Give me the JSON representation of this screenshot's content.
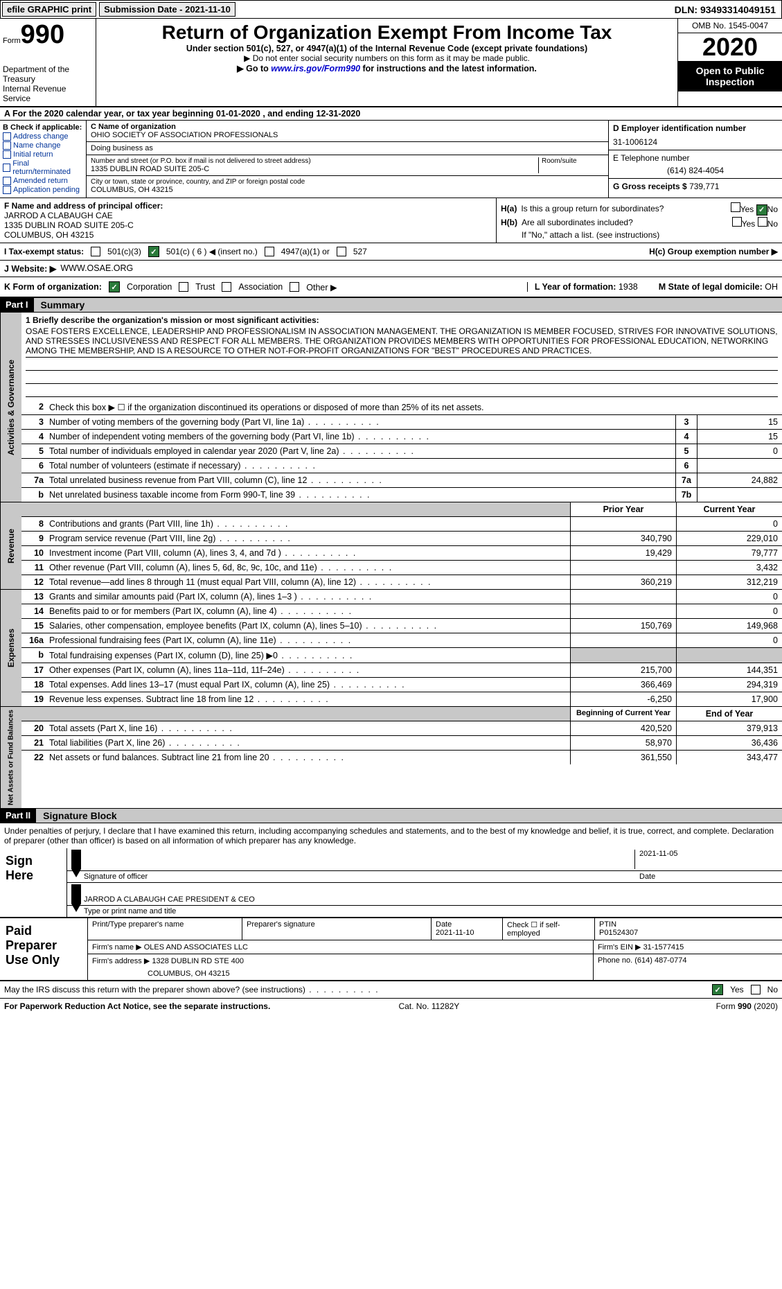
{
  "top": {
    "efile": "efile GRAPHIC print",
    "submission": "Submission Date - 2021-11-10",
    "dln": "DLN: 93493314049151"
  },
  "header": {
    "form_label": "Form",
    "form_num": "990",
    "dept": "Department of the Treasury\nInternal Revenue Service",
    "title": "Return of Organization Exempt From Income Tax",
    "sub": "Under section 501(c), 527, or 4947(a)(1) of the Internal Revenue Code (except private foundations)",
    "note1": "▶ Do not enter social security numbers on this form as it may be made public.",
    "note2": "▶ Go to www.irs.gov/Form990 for instructions and the latest information.",
    "omb": "OMB No. 1545-0047",
    "year": "2020",
    "open": "Open to Public Inspection"
  },
  "row_a": "A For the 2020 calendar year, or tax year beginning 01-01-2020  , and ending 12-31-2020",
  "b": {
    "label": "B Check if applicable:",
    "opts": [
      "Address change",
      "Name change",
      "Initial return",
      "Final return/terminated",
      "Amended return",
      "Application pending"
    ]
  },
  "c": {
    "label": "C Name of organization",
    "org": "OHIO SOCIETY OF ASSOCIATION PROFESSIONALS",
    "dba_label": "Doing business as",
    "dba": "",
    "addr_label": "Number and street (or P.O. box if mail is not delivered to street address)",
    "addr": "1335 DUBLIN ROAD SUITE 205-C",
    "room_label": "Room/suite",
    "city_label": "City or town, state or province, country, and ZIP or foreign postal code",
    "city": "COLUMBUS, OH  43215"
  },
  "d": {
    "label": "D Employer identification number",
    "val": "31-1006124"
  },
  "e": {
    "label": "E Telephone number",
    "val": "(614) 824-4054"
  },
  "g": {
    "label": "G Gross receipts $",
    "val": "739,771"
  },
  "f": {
    "label": "F  Name and address of principal officer:",
    "name": "JARROD A CLABAUGH CAE",
    "addr1": "1335 DUBLIN ROAD SUITE 205-C",
    "addr2": "COLUMBUS, OH  43215"
  },
  "h": {
    "a": "H(a)  Is this a group return for subordinates?",
    "b": "H(b)  Are all subordinates included?",
    "note": "If \"No,\" attach a list. (see instructions)",
    "c": "H(c)  Group exemption number ▶",
    "yes": "Yes",
    "no": "No"
  },
  "i": {
    "label": "I  Tax-exempt status:",
    "opts": [
      "501(c)(3)",
      "501(c) ( 6 ) ◀ (insert no.)",
      "4947(a)(1) or",
      "527"
    ]
  },
  "j": {
    "label": "J  Website: ▶",
    "val": "WWW.OSAE.ORG"
  },
  "k": {
    "label": "K Form of organization:",
    "opts": [
      "Corporation",
      "Trust",
      "Association",
      "Other ▶"
    ]
  },
  "l": {
    "label": "L Year of formation:",
    "val": "1938"
  },
  "m": {
    "label": "M State of legal domicile:",
    "val": "OH"
  },
  "part1": {
    "label": "Part I",
    "title": "Summary"
  },
  "mission": {
    "label": "1  Briefly describe the organization's mission or most significant activities:",
    "text": "OSAE FOSTERS EXCELLENCE, LEADERSHIP AND PROFESSIONALISM IN ASSOCIATION MANAGEMENT. THE ORGANIZATION IS MEMBER FOCUSED, STRIVES FOR INNOVATIVE SOLUTIONS, AND STRESSES INCLUSIVENESS AND RESPECT FOR ALL MEMBERS. THE ORGANIZATION PROVIDES MEMBERS WITH OPPORTUNITIES FOR PROFESSIONAL EDUCATION, NETWORKING AMONG THE MEMBERSHIP, AND IS A RESOURCE TO OTHER NOT-FOR-PROFIT ORGANIZATIONS FOR \"BEST\" PROCEDURES AND PRACTICES."
  },
  "gov": {
    "side": "Activities & Governance",
    "l2": "Check this box ▶ ☐  if the organization discontinued its operations or disposed of more than 25% of its net assets.",
    "rows": [
      {
        "n": "3",
        "t": "Number of voting members of the governing body (Part VI, line 1a)",
        "b": "3",
        "v": "15"
      },
      {
        "n": "4",
        "t": "Number of independent voting members of the governing body (Part VI, line 1b)",
        "b": "4",
        "v": "15"
      },
      {
        "n": "5",
        "t": "Total number of individuals employed in calendar year 2020 (Part V, line 2a)",
        "b": "5",
        "v": "0"
      },
      {
        "n": "6",
        "t": "Total number of volunteers (estimate if necessary)",
        "b": "6",
        "v": ""
      },
      {
        "n": "7a",
        "t": "Total unrelated business revenue from Part VIII, column (C), line 12",
        "b": "7a",
        "v": "24,882"
      },
      {
        "n": "b",
        "t": "Net unrelated business taxable income from Form 990-T, line 39",
        "b": "7b",
        "v": ""
      }
    ]
  },
  "rev": {
    "side": "Revenue",
    "hdr_py": "Prior Year",
    "hdr_cy": "Current Year",
    "rows": [
      {
        "n": "8",
        "t": "Contributions and grants (Part VIII, line 1h)",
        "py": "",
        "cy": "0"
      },
      {
        "n": "9",
        "t": "Program service revenue (Part VIII, line 2g)",
        "py": "340,790",
        "cy": "229,010"
      },
      {
        "n": "10",
        "t": "Investment income (Part VIII, column (A), lines 3, 4, and 7d )",
        "py": "19,429",
        "cy": "79,777"
      },
      {
        "n": "11",
        "t": "Other revenue (Part VIII, column (A), lines 5, 6d, 8c, 9c, 10c, and 11e)",
        "py": "",
        "cy": "3,432"
      },
      {
        "n": "12",
        "t": "Total revenue—add lines 8 through 11 (must equal Part VIII, column (A), line 12)",
        "py": "360,219",
        "cy": "312,219"
      }
    ]
  },
  "exp": {
    "side": "Expenses",
    "rows": [
      {
        "n": "13",
        "t": "Grants and similar amounts paid (Part IX, column (A), lines 1–3 )",
        "py": "",
        "cy": "0"
      },
      {
        "n": "14",
        "t": "Benefits paid to or for members (Part IX, column (A), line 4)",
        "py": "",
        "cy": "0"
      },
      {
        "n": "15",
        "t": "Salaries, other compensation, employee benefits (Part IX, column (A), lines 5–10)",
        "py": "150,769",
        "cy": "149,968"
      },
      {
        "n": "16a",
        "t": "Professional fundraising fees (Part IX, column (A), line 11e)",
        "py": "",
        "cy": "0"
      },
      {
        "n": "b",
        "t": "Total fundraising expenses (Part IX, column (D), line 25) ▶0",
        "py": "grey",
        "cy": "grey"
      },
      {
        "n": "17",
        "t": "Other expenses (Part IX, column (A), lines 11a–11d, 11f–24e)",
        "py": "215,700",
        "cy": "144,351"
      },
      {
        "n": "18",
        "t": "Total expenses. Add lines 13–17 (must equal Part IX, column (A), line 25)",
        "py": "366,469",
        "cy": "294,319"
      },
      {
        "n": "19",
        "t": "Revenue less expenses. Subtract line 18 from line 12",
        "py": "-6,250",
        "cy": "17,900"
      }
    ]
  },
  "net": {
    "side": "Net Assets or Fund Balances",
    "hdr_py": "Beginning of Current Year",
    "hdr_cy": "End of Year",
    "rows": [
      {
        "n": "20",
        "t": "Total assets (Part X, line 16)",
        "py": "420,520",
        "cy": "379,913"
      },
      {
        "n": "21",
        "t": "Total liabilities (Part X, line 26)",
        "py": "58,970",
        "cy": "36,436"
      },
      {
        "n": "22",
        "t": "Net assets or fund balances. Subtract line 21 from line 20",
        "py": "361,550",
        "cy": "343,477"
      }
    ]
  },
  "part2": {
    "label": "Part II",
    "title": "Signature Block"
  },
  "sig": {
    "decl": "Under penalties of perjury, I declare that I have examined this return, including accompanying schedules and statements, and to the best of my knowledge and belief, it is true, correct, and complete. Declaration of preparer (other than officer) is based on all information of which preparer has any knowledge.",
    "sign_here": "Sign Here",
    "sig_label": "Signature of officer",
    "date_label": "Date",
    "date": "2021-11-05",
    "name": "JARROD A CLABAUGH CAE  PRESIDENT & CEO",
    "name_label": "Type or print name and title"
  },
  "prep": {
    "label": "Paid Preparer Use Only",
    "h1": "Print/Type preparer's name",
    "h2": "Preparer's signature",
    "h3": "Date",
    "h3v": "2021-11-10",
    "h4": "Check ☐ if self-employed",
    "h5": "PTIN",
    "h5v": "P01524307",
    "firm_label": "Firm's name  ▶",
    "firm": "OLES AND ASSOCIATES LLC",
    "ein_label": "Firm's EIN ▶",
    "ein": "31-1577415",
    "addr_label": "Firm's address ▶",
    "addr": "1328 DUBLIN RD STE 400",
    "city": "COLUMBUS, OH  43215",
    "phone_label": "Phone no.",
    "phone": "(614) 487-0774"
  },
  "bottom": {
    "q": "May the IRS discuss this return with the preparer shown above? (see instructions)",
    "yes": "Yes",
    "no": "No"
  },
  "footer": {
    "left": "For Paperwork Reduction Act Notice, see the separate instructions.",
    "mid": "Cat. No. 11282Y",
    "right": "Form 990 (2020)"
  }
}
